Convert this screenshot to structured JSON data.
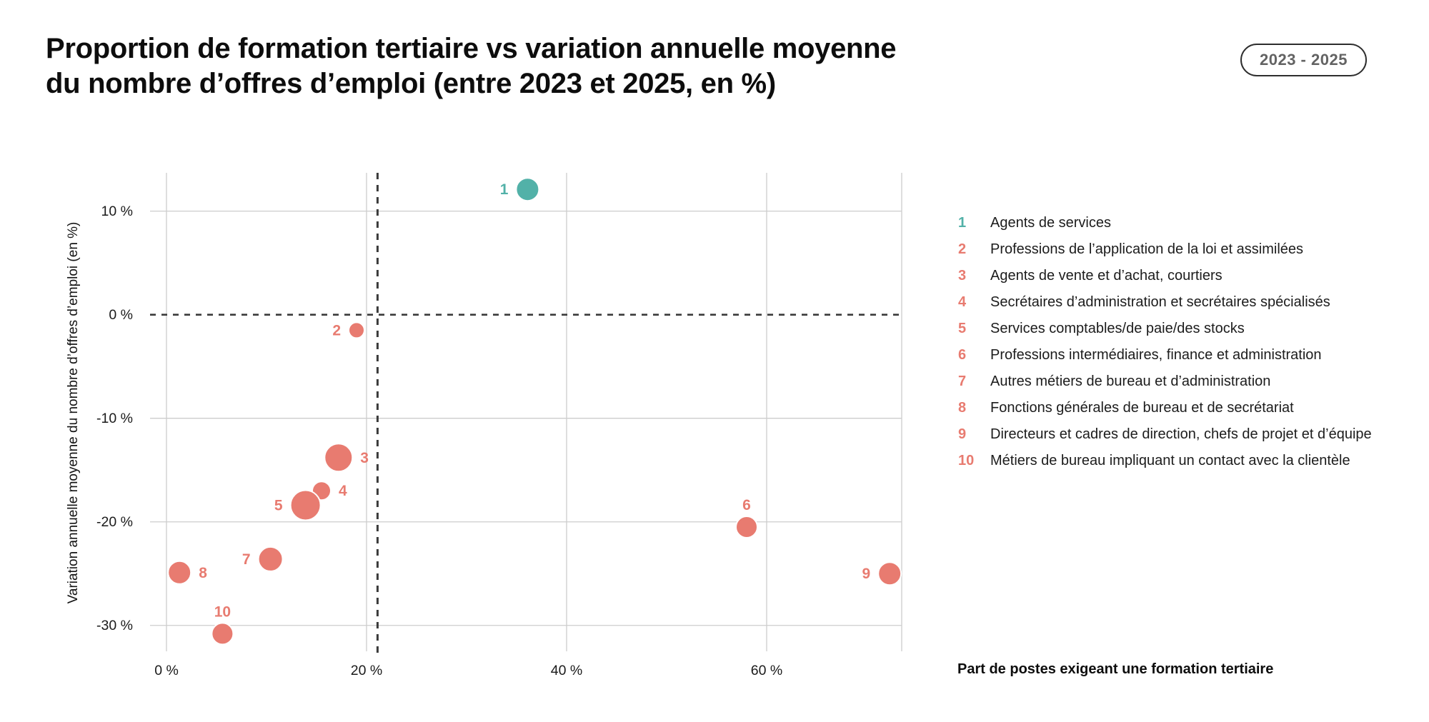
{
  "header": {
    "title_line1": "Proportion de formation tertiaire vs variation annuelle moyenne",
    "title_line2": "du nombre d’offres d’emploi (entre 2023 et 2025, en %)",
    "badge": "2023 - 2025"
  },
  "colors": {
    "teal": "#52b1a8",
    "salmon": "#e87b70",
    "grid": "#cdcdcd",
    "axis_text": "#1a1a1a",
    "dashed_line": "#3a3a3a",
    "bubble_stroke": "#ffffff"
  },
  "chart_data": {
    "type": "scatter",
    "title": "Proportion de formation tertiaire vs variation annuelle moyenne du nombre d’offres d’emploi (entre 2023 et 2025, en %)",
    "xlabel": "Part de postes exigeant une formation tertiaire",
    "ylabel": "Variation annuelle moyenne du nombre d’offres d’emploi (en %)",
    "unit": "%",
    "xlim": [
      0,
      73.5
    ],
    "ylim": [
      -32.5,
      13.7
    ],
    "x_ticks": [
      0,
      20,
      40,
      60
    ],
    "y_ticks": [
      10,
      0,
      -10,
      -20,
      -30
    ],
    "grid": true,
    "legend_position": "right",
    "reference_lines": {
      "horizontal_y": 0,
      "vertical_x": 21.1
    },
    "points": [
      {
        "id": 1,
        "label": "Agents de services",
        "x": 36.1,
        "y": 12.1,
        "r": 16,
        "color": "teal",
        "label_side": "left"
      },
      {
        "id": 2,
        "label": "Professions de l’application de la loi et assimilées",
        "x": 19.0,
        "y": -1.5,
        "r": 11,
        "color": "salmon",
        "label_side": "left"
      },
      {
        "id": 3,
        "label": "Agents de vente et d’achat, courtiers",
        "x": 17.2,
        "y": -13.8,
        "r": 19.5,
        "color": "salmon",
        "label_side": "right"
      },
      {
        "id": 4,
        "label": "Secrétaires d’administration et secrétaires spécialisés",
        "x": 15.5,
        "y": -17.0,
        "r": 13,
        "color": "salmon",
        "label_side": "right"
      },
      {
        "id": 5,
        "label": "Services comptables/de paie/des stocks",
        "x": 13.9,
        "y": -18.4,
        "r": 21,
        "color": "salmon",
        "label_side": "left"
      },
      {
        "id": 6,
        "label": "Professions intermédiaires, finance et administration",
        "x": 58.0,
        "y": -20.5,
        "r": 15,
        "color": "salmon",
        "label_side": "above"
      },
      {
        "id": 7,
        "label": "Autres métiers de bureau et d’administration",
        "x": 10.4,
        "y": -23.6,
        "r": 17,
        "color": "salmon",
        "label_side": "left"
      },
      {
        "id": 8,
        "label": "Fonctions générales de bureau et de secrétariat",
        "x": 1.3,
        "y": -24.9,
        "r": 16,
        "color": "salmon",
        "label_side": "right"
      },
      {
        "id": 9,
        "label": "Directeurs et cadres de direction, chefs de projet et d’équipe",
        "x": 72.3,
        "y": -25.0,
        "r": 16,
        "color": "salmon",
        "label_side": "left"
      },
      {
        "id": 10,
        "label": "Métiers de bureau impliquant un contact avec la clientèle",
        "x": 5.6,
        "y": -30.8,
        "r": 15,
        "color": "salmon",
        "label_side": "above"
      }
    ]
  }
}
